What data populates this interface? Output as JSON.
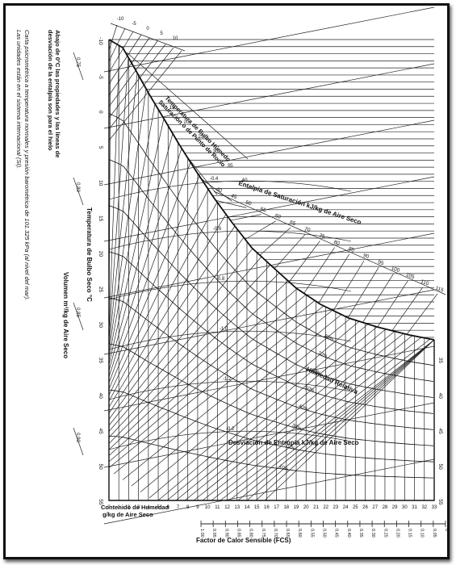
{
  "notes": {
    "line1": "Carta psicrométrica a temperatura normales y presión barométrica de 101.325 kPa (al nivel del mar).",
    "line2": "Las unidades están en el sistema internacional (SI).",
    "line3": "Abajo de 0°C las propiedades y las líneas de",
    "line4": "desviación de la entalpía son para el hielo"
  },
  "labels": {
    "dry_bulb": "Temperatura de Bulbo Seco °C",
    "volume": "Volumen m³/kg de Aire Seco",
    "wet_bulb_1": "Temperatura de Bulbo Húmedo",
    "wet_bulb_2": "Saturación o de Punto de Rocío",
    "enthalpy": "Entalpía de Saturación kJ/kg de Aire Seco",
    "relative_humidity": "Humedad Relativa",
    "entropy_deviation": "Desviación de Entropía kJ/kg de Aire Seco",
    "moisture_1": "Contenido de Humedad",
    "moisture_2": "g/kg de Aire Seco",
    "fcs": "Factor de Calor Sensible (FCS)"
  },
  "dry_bulb_ticks": [
    "-10",
    "-5",
    "0",
    "5",
    "10",
    "15",
    "20",
    "25",
    "30",
    "35",
    "40",
    "45",
    "50",
    "55"
  ],
  "volume_ticks": [
    "0.75",
    "0.80",
    "0.85",
    "0.90"
  ],
  "top_temp_ticks": [
    "-10",
    "-5",
    "0",
    "5",
    "10"
  ],
  "wet_bulb_ticks": [
    "15",
    "20",
    "25",
    "30",
    "35",
    "40"
  ],
  "enthalpy_ticks": [
    "40",
    "45",
    "50",
    "55",
    "60",
    "65",
    "70",
    "75",
    "80",
    "85",
    "90",
    "95",
    "100",
    "105",
    "110",
    "115"
  ],
  "rh_labels": [
    "80%",
    "70%",
    "60%",
    "50%",
    "40%",
    "30%",
    "20%",
    "10%"
  ],
  "deviation_labels": [
    "-0.4",
    "-0.6",
    "-0.8",
    "-1.0",
    "-1.2",
    "-0.2"
  ],
  "moisture_ticks": [
    "0",
    "1",
    "2",
    "3",
    "4",
    "5",
    "6",
    "7",
    "8",
    "9",
    "10",
    "11",
    "12",
    "13",
    "14",
    "15",
    "16",
    "17",
    "18",
    "19",
    "20",
    "21",
    "22",
    "23",
    "24",
    "25",
    "26",
    "27",
    "28",
    "29",
    "30",
    "31",
    "32",
    "33"
  ],
  "fcs_ticks": [
    "1.00",
    "0.95",
    "0.90",
    "0.85",
    "0.80",
    "0.75",
    "0.70",
    "0.65",
    "0.60",
    "0.55",
    "0.50",
    "0.45",
    "0.40",
    "0.35",
    "0.30",
    "0.25",
    "0.20",
    "0.15",
    "0.10",
    "0.05",
    "0"
  ],
  "right_temp_ticks": [
    "35",
    "40",
    "45",
    "50",
    "55"
  ]
}
